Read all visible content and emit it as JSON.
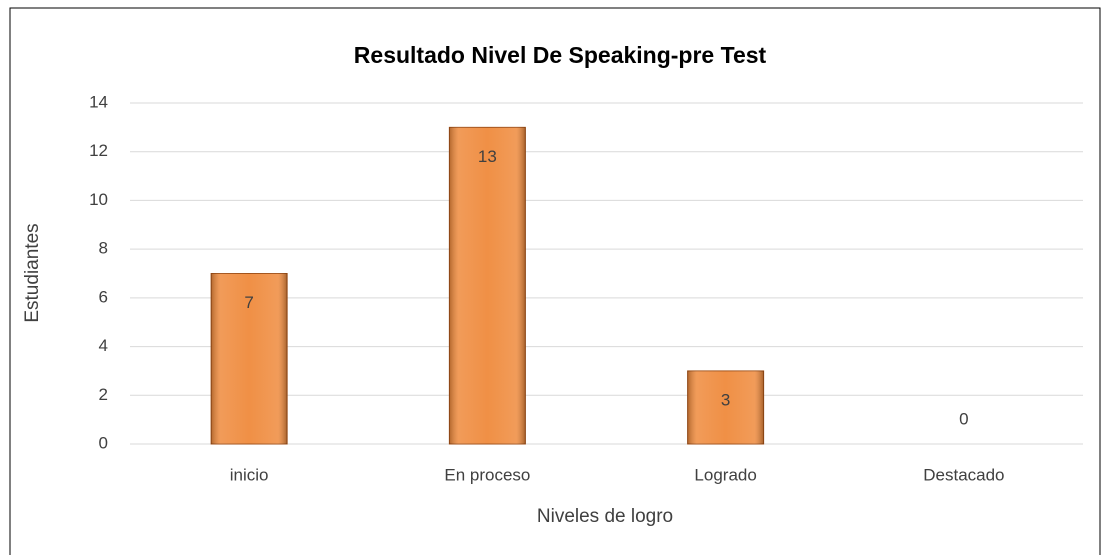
{
  "chart_data": {
    "type": "bar",
    "title": "Resultado Nivel De Speaking-pre Test",
    "x_label": "Niveles de logro",
    "y_label": "Estudiantes",
    "categories": [
      "inicio",
      "En proceso",
      "Logrado",
      "Destacado"
    ],
    "values": [
      7,
      13,
      3,
      0
    ],
    "color": "#ef8a3c",
    "ylim": [
      0,
      14
    ],
    "yticks": [
      0,
      2,
      4,
      6,
      8,
      10,
      12,
      14
    ],
    "grid": true
  }
}
